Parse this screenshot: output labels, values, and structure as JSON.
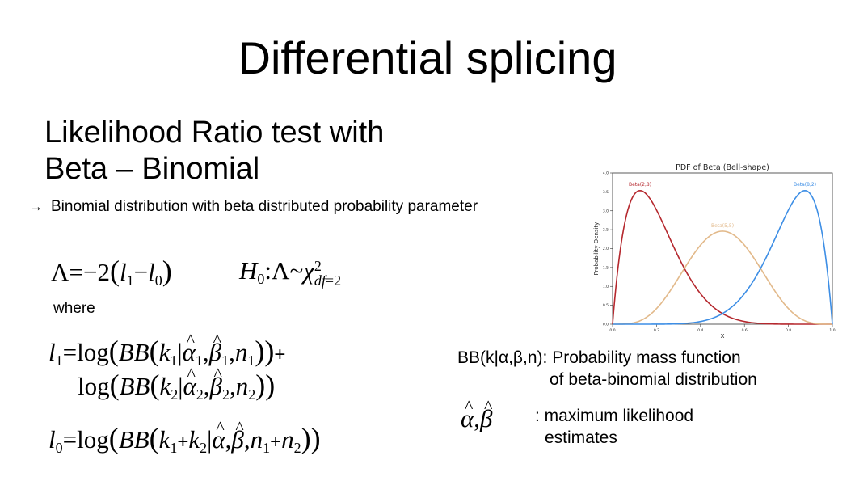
{
  "title": "Differential splicing",
  "subtitle": {
    "line1": "Likelihood Ratio test with",
    "line2": "Beta – Binomial"
  },
  "bullet": {
    "icon": "arrow-right-icon",
    "text": "Binomial distribution with beta distributed probability parameter"
  },
  "where_label": "where",
  "bb_description": {
    "line1": "BB(k|α,β,n): Probability mass function",
    "line2": "of beta-binomial distribution"
  },
  "mle_description": {
    "line1": ": maximum likelihood",
    "line2": "estimates"
  },
  "chart_data": {
    "type": "line",
    "title": "PDF of Beta (Bell-shape)",
    "xlabel": "X",
    "ylabel": "Probability Density",
    "xlim": [
      0,
      1
    ],
    "ylim": [
      0,
      4.0
    ],
    "xticks": [
      0.0,
      0.2,
      0.4,
      0.6,
      0.8,
      1.0
    ],
    "yticks": [
      0.0,
      0.5,
      1.0,
      1.5,
      2.0,
      2.5,
      3.0,
      3.5,
      4.0
    ],
    "series": [
      {
        "name": "Beta(2,8)",
        "a": 2,
        "b": 8,
        "color": "#b5282e"
      },
      {
        "name": "Beta(5,5)",
        "a": 5,
        "b": 5,
        "color": "#e2b98a"
      },
      {
        "name": "Beta(8,2)",
        "a": 8,
        "b": 2,
        "color": "#3d8ee5"
      }
    ],
    "grid": false,
    "legend": "inline labels"
  }
}
